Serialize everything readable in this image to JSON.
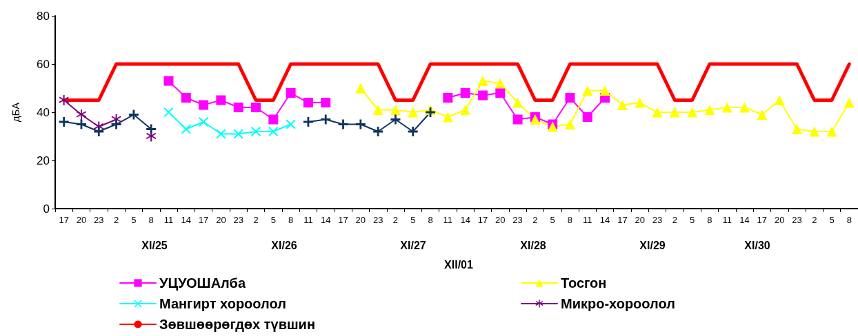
{
  "chart_data": {
    "type": "line",
    "ylabel": "дБА",
    "categories": [
      "17",
      "20",
      "23",
      "2",
      "5",
      "8",
      "11",
      "14",
      "17",
      "20",
      "23",
      "2",
      "5",
      "8",
      "11",
      "14",
      "17",
      "20",
      "23",
      "2",
      "5",
      "8",
      "11",
      "14",
      "17",
      "20",
      "23",
      "2",
      "5",
      "8",
      "11",
      "14",
      "17",
      "20",
      "23",
      "2",
      "5",
      "8",
      "11",
      "14",
      "17",
      "20",
      "23",
      "2",
      "5",
      "8"
    ],
    "series": [
      {
        "name": "УЦУОШАлба",
        "color": "#ff00ff",
        "marker": "square",
        "values": [
          null,
          null,
          null,
          null,
          null,
          null,
          53,
          46,
          43,
          45,
          42,
          42,
          37,
          48,
          44,
          44,
          null,
          null,
          null,
          null,
          null,
          null,
          46,
          48,
          47,
          48,
          37,
          38,
          35,
          46,
          38,
          46,
          null,
          null,
          null,
          null,
          null,
          null,
          null,
          null,
          null,
          null,
          null,
          null,
          null,
          null
        ]
      },
      {
        "name": "Тосгон",
        "color": "#ffff00",
        "marker": "triangle",
        "values": [
          null,
          null,
          null,
          null,
          null,
          null,
          null,
          null,
          null,
          null,
          null,
          null,
          null,
          null,
          null,
          null,
          null,
          50,
          41,
          41,
          40,
          41,
          38,
          41,
          53,
          52,
          44,
          37,
          34,
          35,
          49,
          49,
          43,
          44,
          40,
          40,
          40,
          41,
          42,
          42,
          39,
          45,
          33,
          32,
          32,
          44
        ]
      },
      {
        "name": "Мангирт хороолол",
        "color": "#00ffff",
        "marker": "cross",
        "values": [
          null,
          null,
          null,
          null,
          null,
          null,
          40,
          33,
          36,
          31,
          31,
          32,
          32,
          35,
          null,
          null,
          null,
          null,
          null,
          null,
          null,
          null,
          null,
          null,
          null,
          null,
          null,
          null,
          null,
          null,
          null,
          null,
          null,
          null,
          null,
          null,
          null,
          null,
          null,
          null,
          null,
          null,
          null,
          null,
          null,
          null
        ]
      },
      {
        "name": "Микро-хороолол",
        "color": "#800080",
        "marker": "star",
        "values": [
          45,
          39,
          34,
          37,
          null,
          30,
          null,
          null,
          null,
          null,
          null,
          null,
          null,
          null,
          null,
          null,
          null,
          null,
          null,
          null,
          null,
          null,
          null,
          null,
          null,
          null,
          null,
          null,
          null,
          null,
          null,
          null,
          null,
          null,
          null,
          null,
          null,
          null,
          null,
          null,
          null,
          null,
          null,
          null,
          null,
          null
        ]
      },
      {
        "color": "#0f3460",
        "marker": "plus",
        "values": [
          36,
          35,
          32,
          35,
          39,
          33,
          null,
          null,
          null,
          null,
          null,
          null,
          null,
          null,
          36,
          37,
          35,
          35,
          32,
          37,
          32,
          40,
          null,
          null,
          null,
          null,
          null,
          null,
          null,
          null,
          null,
          null,
          null,
          null,
          null,
          null,
          null,
          null,
          null,
          null,
          null,
          null,
          null,
          null,
          null,
          null
        ]
      },
      {
        "name": "Зөвшөөрөгдөх түвшин",
        "color": "#ff0000",
        "marker": "none",
        "values": [
          45,
          45,
          45,
          60,
          60,
          60,
          60,
          60,
          60,
          60,
          60,
          45,
          45,
          60,
          60,
          60,
          60,
          60,
          60,
          45,
          45,
          60,
          60,
          60,
          60,
          60,
          60,
          45,
          45,
          60,
          60,
          60,
          60,
          60,
          60,
          45,
          45,
          60,
          60,
          60,
          60,
          60,
          60,
          45,
          45,
          60
        ]
      }
    ],
    "ylim": [
      0,
      80
    ],
    "yticks": [
      0,
      20,
      40,
      60,
      80
    ],
    "grid": false,
    "legend": "bottom",
    "annotations": [
      "XI/25",
      "XI/26",
      "XI/27",
      "XI/28",
      "XI/29",
      "XI/30",
      "XII/01"
    ]
  }
}
